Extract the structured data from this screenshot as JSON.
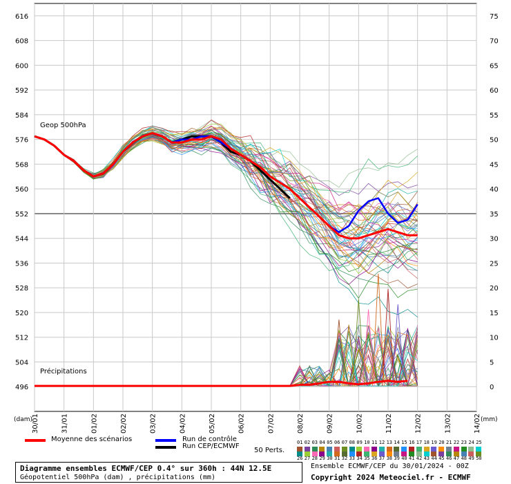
{
  "chart_data": {
    "type": "line",
    "ylabel_left": "(dam)",
    "ylabel_right": "(mm)",
    "left_ticks": [
      "616",
      "608",
      "600",
      "592",
      "584",
      "576",
      "568",
      "560",
      "552",
      "544",
      "536",
      "528",
      "520",
      "512",
      "504",
      "496"
    ],
    "right_ticks": [
      "75",
      "70",
      "65",
      "60",
      "55",
      "50",
      "45",
      "40",
      "35",
      "30",
      "25",
      "20",
      "15",
      "10",
      "5",
      "0"
    ],
    "ylim_geop": [
      488,
      620
    ],
    "ylim_precip": [
      -5,
      75
    ],
    "x_ticks": [
      "30/01",
      "31/01",
      "01/02",
      "02/02",
      "03/02",
      "04/02",
      "05/02",
      "06/02",
      "07/02",
      "08/02",
      "09/02",
      "10/02",
      "11/02",
      "12/02",
      "13/02",
      "14/02"
    ],
    "annotations": [
      "Geop 500hPa",
      "Précipitations"
    ],
    "grid": true,
    "mean_color": "#ff0000",
    "control_color": "#0000ff",
    "oper_color": "#000000",
    "mean_geop": [
      577,
      576,
      574,
      571,
      569,
      566,
      564,
      565,
      568,
      572,
      575,
      577,
      578,
      577,
      575,
      575,
      576,
      576,
      577,
      576,
      573,
      571,
      569,
      567,
      564,
      562,
      560,
      557,
      554,
      551,
      548,
      545,
      544,
      544,
      545,
      546,
      547,
      546,
      545,
      545
    ],
    "control_geop": [
      577,
      576,
      574,
      571,
      569,
      566,
      564,
      565,
      568,
      572,
      575,
      577,
      578,
      577,
      575,
      576,
      576,
      577,
      577,
      575,
      573,
      571,
      569,
      567,
      564,
      562,
      560,
      557,
      554,
      551,
      548,
      546,
      548,
      553,
      556,
      557,
      552,
      549,
      550,
      555
    ],
    "oper_geop": [
      577,
      576,
      574,
      571,
      569,
      566,
      564,
      565,
      568,
      572,
      575,
      577,
      578,
      577,
      575,
      576,
      577,
      577,
      577,
      575,
      572,
      571,
      569,
      566,
      563,
      560,
      557
    ],
    "mean_precip": [
      0,
      0,
      0,
      0,
      0,
      0,
      0,
      0,
      0,
      0,
      0,
      0,
      0,
      0,
      0,
      0,
      0,
      0,
      0,
      0,
      0,
      0,
      0,
      0,
      0,
      0,
      0,
      0,
      0.2,
      0.2,
      0.5,
      0.8,
      0.8,
      0.5,
      0.3,
      0.5,
      0.8,
      1,
      0.8,
      1
    ],
    "peak_precip_values": [
      13,
      12,
      17,
      15,
      22,
      19,
      16
    ],
    "members_count": 50
  },
  "legend": {
    "mean_label": "Moyenne des scénarios",
    "control_label": "Run de contrôle",
    "oper_label": "Run CEP/ECMWF",
    "perts_label": "50 Perts.",
    "perts_row1": [
      "01",
      "02",
      "03",
      "04",
      "05",
      "06",
      "07",
      "08",
      "09",
      "10",
      "11",
      "12",
      "13",
      "14",
      "15",
      "16",
      "17",
      "18",
      "19",
      "20",
      "21",
      "22",
      "23",
      "24",
      "25"
    ],
    "perts_row2": [
      "26",
      "27",
      "28",
      "29",
      "30",
      "31",
      "32",
      "33",
      "34",
      "35",
      "36",
      "37",
      "38",
      "39",
      "40",
      "41",
      "42",
      "43",
      "44",
      "45",
      "46",
      "47",
      "48",
      "49",
      "50"
    ],
    "colors": [
      "#a0522d",
      "#7b3f9f",
      "#2e8b57",
      "#b8860b",
      "#4682b4",
      "#cd5c5c",
      "#6b8e23",
      "#008b8b",
      "#9acd32",
      "#ff69b4",
      "#8b008b",
      "#20b2aa",
      "#d2691e",
      "#556b2f",
      "#1e90ff",
      "#b22222",
      "#3cb371",
      "#daa520",
      "#6a5acd",
      "#ff8c00",
      "#708090",
      "#c71585",
      "#228b22",
      "#8fbc8f",
      "#00ced1"
    ]
  },
  "footer": {
    "title": "Diagramme ensembles ECMWF/CEP 0.4° sur 360h : 44N 12.5E",
    "subtitle": "Géopotentiel 500hPa (dam) , précipitations (mm)",
    "run": "Ensemble ECMWF/CEP du 30/01/2024 - 00Z",
    "copyright": "Copyright 2024 Meteociel.fr - ECMWF"
  }
}
